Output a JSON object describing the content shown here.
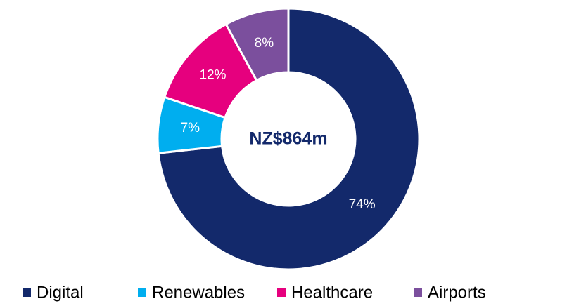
{
  "chart_data": {
    "type": "pie",
    "center_text": "NZ$864m",
    "categories": [
      "Digital",
      "Renewables",
      "Healthcare",
      "Airports"
    ],
    "values": [
      74,
      7,
      12,
      8
    ],
    "value_labels": [
      "74%",
      "7%",
      "12%",
      "8%"
    ],
    "colors": [
      "#13296b",
      "#00aeef",
      "#e6007e",
      "#7b4f9d"
    ],
    "legend": "bottom"
  }
}
